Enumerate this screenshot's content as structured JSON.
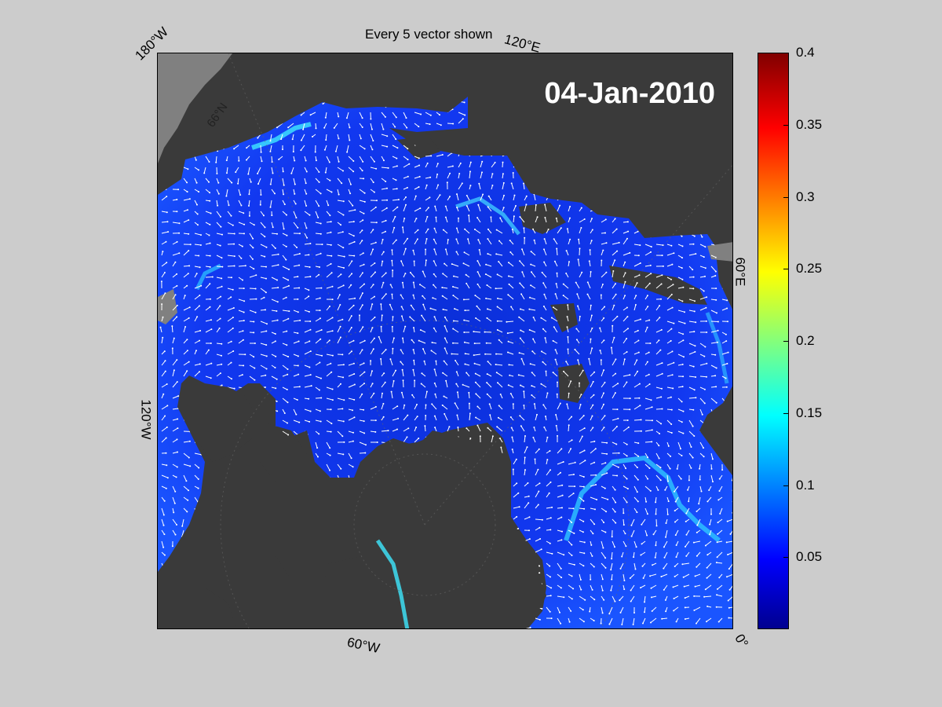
{
  "figure": {
    "title": "Every 5 vector shown",
    "date": "04-Jan-2010"
  },
  "map": {
    "projection": "north polar stereographic",
    "meridian_labels": [
      "180°W",
      "120°E",
      "60°E",
      "0°",
      "60°W",
      "120°W"
    ],
    "parallel_labels": [
      "66°N"
    ],
    "colors": {
      "land": "#3a3a3a",
      "ice_shelf": "#808080",
      "ocean_low": "#0b2ee0",
      "ocean_mid": "#1f6cff",
      "strong_flow": "#41f0ff",
      "vectors": "#ffffff"
    }
  },
  "colorbar": {
    "colormap": "jet",
    "min": 0,
    "max": 0.4,
    "ticks": [
      "0.4",
      "0.35",
      "0.3",
      "0.25",
      "0.2",
      "0.15",
      "0.1",
      "0.05"
    ]
  }
}
